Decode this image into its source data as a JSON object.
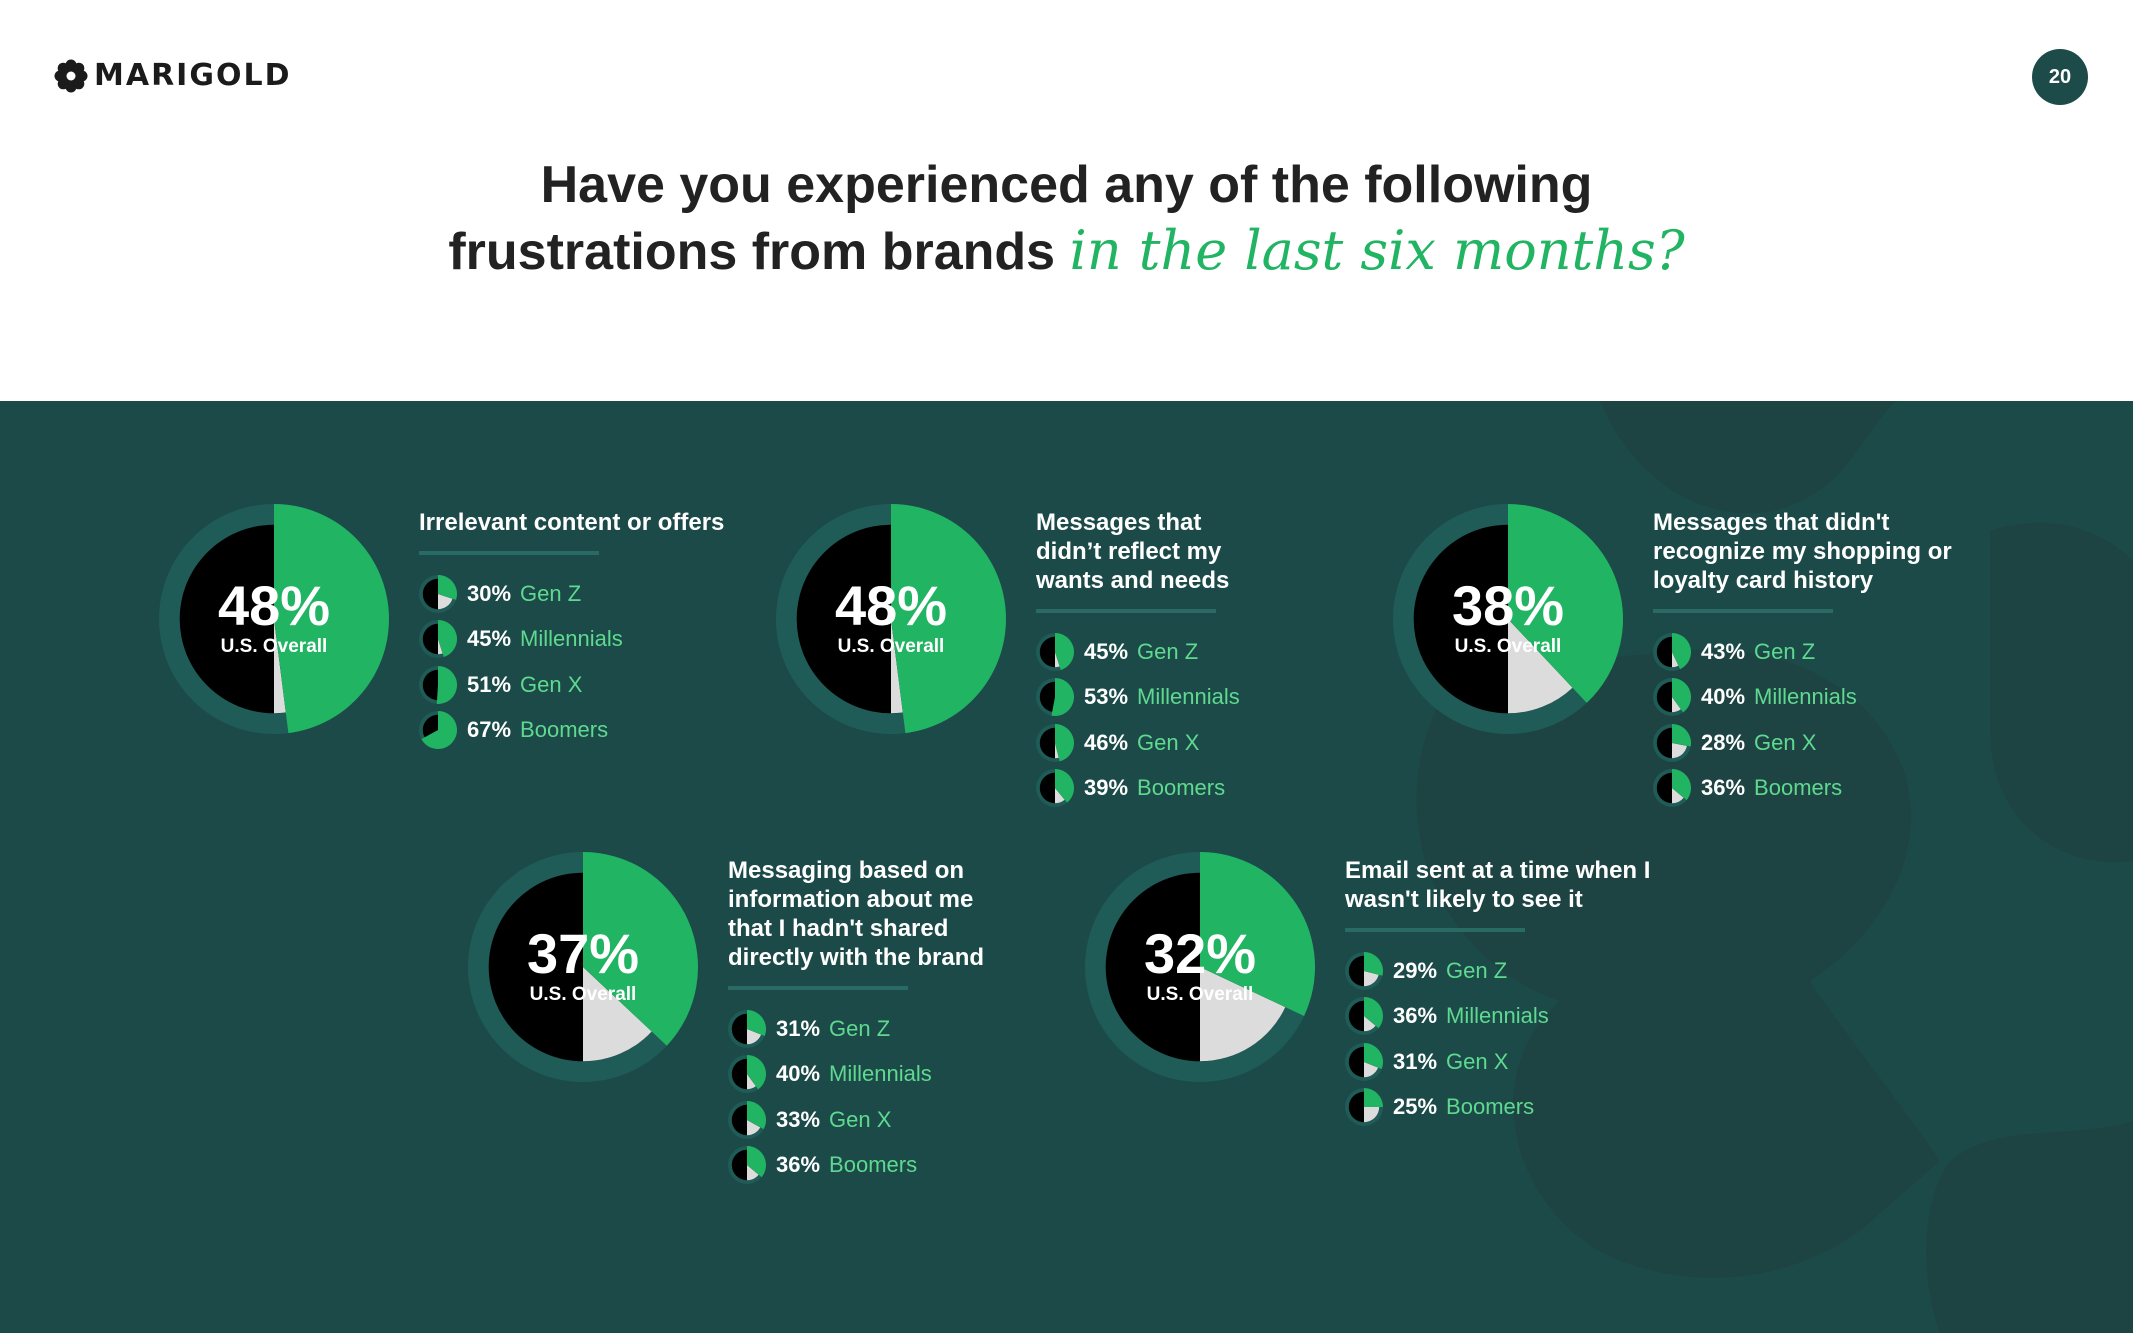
{
  "header": {
    "logo_text": "MARIGOLD",
    "page_number": "20",
    "title_line1": "Have you experienced any of the following",
    "title_line2_plain": "frustrations from brands ",
    "title_line2_italic": "in the last six months?"
  },
  "colors": {
    "panel_bg": "#1b4a49",
    "ring": "#1f5c57",
    "green": "#21b463",
    "light_gray": "#dcdcdc",
    "black": "#000000",
    "gen_text": "#5fd98f"
  },
  "chart_data": [
    {
      "type": "pie",
      "title": "Irrelevant content or offers",
      "overall_value": 48,
      "overall_label": "48%",
      "overall_sub": "U.S. Overall",
      "generations": [
        {
          "label": "30%",
          "value": 30,
          "name": "Gen Z"
        },
        {
          "label": "45%",
          "value": 45,
          "name": "Millennials"
        },
        {
          "label": "51%",
          "value": 51,
          "name": "Gen X"
        },
        {
          "label": "67%",
          "value": 67,
          "name": "Boomers"
        }
      ]
    },
    {
      "type": "pie",
      "title": "Messages that didn’t reflect my wants and needs",
      "overall_value": 48,
      "overall_label": "48%",
      "overall_sub": "U.S. Overall",
      "generations": [
        {
          "label": "45%",
          "value": 45,
          "name": "Gen Z"
        },
        {
          "label": "53%",
          "value": 53,
          "name": "Millennials"
        },
        {
          "label": "46%",
          "value": 46,
          "name": "Gen X"
        },
        {
          "label": "39%",
          "value": 39,
          "name": "Boomers"
        }
      ]
    },
    {
      "type": "pie",
      "title": "Messages that didn't recognize my shopping or loyalty card history",
      "overall_value": 38,
      "overall_label": "38%",
      "overall_sub": "U.S. Overall",
      "generations": [
        {
          "label": "43%",
          "value": 43,
          "name": "Gen Z"
        },
        {
          "label": "40%",
          "value": 40,
          "name": "Millennials"
        },
        {
          "label": "28%",
          "value": 28,
          "name": "Gen X"
        },
        {
          "label": "36%",
          "value": 36,
          "name": "Boomers"
        }
      ]
    },
    {
      "type": "pie",
      "title": "Messaging based on information about me that I hadn't shared directly with the brand",
      "overall_value": 37,
      "overall_label": "37%",
      "overall_sub": "U.S. Overall",
      "generations": [
        {
          "label": "31%",
          "value": 31,
          "name": "Gen Z"
        },
        {
          "label": "40%",
          "value": 40,
          "name": "Millennials"
        },
        {
          "label": "33%",
          "value": 33,
          "name": "Gen X"
        },
        {
          "label": "36%",
          "value": 36,
          "name": "Boomers"
        }
      ]
    },
    {
      "type": "pie",
      "title": "Email sent at a time when I wasn't likely to see it",
      "overall_value": 32,
      "overall_label": "32%",
      "overall_sub": "U.S. Overall",
      "generations": [
        {
          "label": "29%",
          "value": 29,
          "name": "Gen Z"
        },
        {
          "label": "36%",
          "value": 36,
          "name": "Millennials"
        },
        {
          "label": "31%",
          "value": 31,
          "name": "Gen X"
        },
        {
          "label": "25%",
          "value": 25,
          "name": "Boomers"
        }
      ]
    }
  ]
}
